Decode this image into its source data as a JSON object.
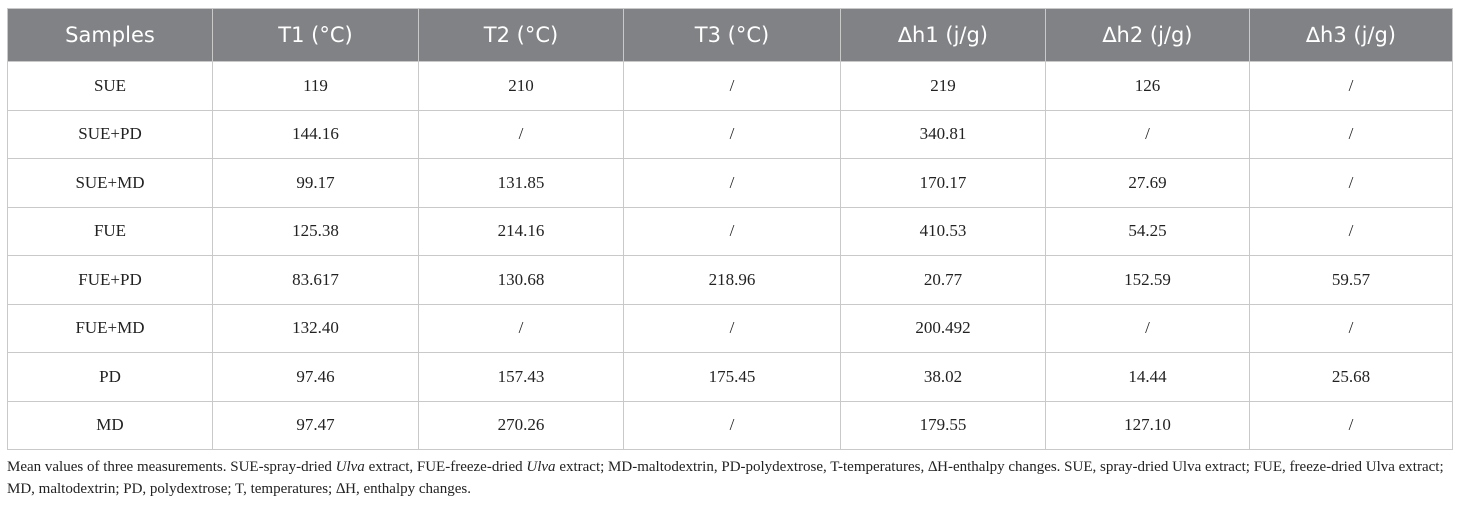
{
  "table": {
    "header": [
      "Samples",
      "T1 (°C)",
      "T2 (°C)",
      "T3 (°C)",
      "∆h1 (j/g)",
      "∆h2 (j/g)",
      "∆h3 (j/g)"
    ],
    "rows": [
      [
        "SUE",
        "119",
        "210",
        "/",
        "219",
        "126",
        "/"
      ],
      [
        "SUE+PD",
        "144.16",
        "/",
        "/",
        "340.81",
        "/",
        "/"
      ],
      [
        "SUE+MD",
        "99.17",
        "131.85",
        "/",
        "170.17",
        "27.69",
        "/"
      ],
      [
        "FUE",
        "125.38",
        "214.16",
        "/",
        "410.53",
        "54.25",
        "/"
      ],
      [
        "FUE+PD",
        "83.617",
        "130.68",
        "218.96",
        "20.77",
        "152.59",
        "59.57"
      ],
      [
        "FUE+MD",
        "132.40",
        "/",
        "/",
        "200.492",
        "/",
        "/"
      ],
      [
        "PD",
        "97.46",
        "157.43",
        "175.45",
        "38.02",
        "14.44",
        "25.68"
      ],
      [
        "MD",
        "97.47",
        "270.26",
        "/",
        "179.55",
        "127.10",
        "/"
      ]
    ]
  },
  "footnote": [
    "Mean values of three measurements. SUE-spray-dried ",
    "Ulva",
    " extract, FUE-freeze-dried ",
    "Ulva",
    " extract; MD-maltodextrin, PD-polydextrose, T-temperatures, ∆H-enthalpy changes. SUE, spray-dried Ulva extract; FUE, freeze-dried Ulva extract; MD, maltodextrin; PD, polydextrose; T, temperatures; ∆H, enthalpy changes."
  ]
}
